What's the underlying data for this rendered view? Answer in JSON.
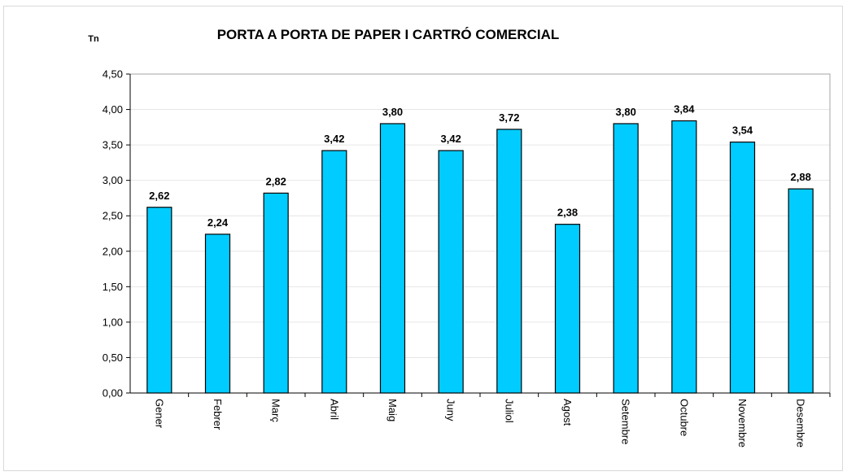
{
  "chart_data": {
    "type": "bar",
    "title": "PORTA A PORTA  DE PAPER I CARTRÓ COMERCIAL",
    "ylabel": "Tn",
    "xlabel": "",
    "categories": [
      "Gener",
      "Febrer",
      "Març",
      "Abril",
      "Maig",
      "Juny",
      "Juliol",
      "Agost",
      "Setembre",
      "Octubre",
      "Novembre",
      "Desembre"
    ],
    "values": [
      2.62,
      2.24,
      2.82,
      3.42,
      3.8,
      3.42,
      3.72,
      2.38,
      3.8,
      3.84,
      3.54,
      2.88
    ],
    "value_labels": [
      "2,62",
      "2,24",
      "2,82",
      "3,42",
      "3,80",
      "3,42",
      "3,72",
      "2,38",
      "3,80",
      "3,84",
      "3,54",
      "2,88"
    ],
    "ylim": [
      0,
      4.5
    ],
    "yticks": [
      0,
      0.5,
      1.0,
      1.5,
      2.0,
      2.5,
      3.0,
      3.5,
      4.0,
      4.5
    ],
    "ytick_labels": [
      "0,00",
      "0,50",
      "1,00",
      "1,50",
      "2,00",
      "2,50",
      "3,00",
      "3,50",
      "4,00",
      "4,50"
    ],
    "grid": true,
    "legend": "none",
    "bar_color": "#00CCFF",
    "bar_edge_color": "#000000",
    "grid_color": "#e6e6e6"
  }
}
